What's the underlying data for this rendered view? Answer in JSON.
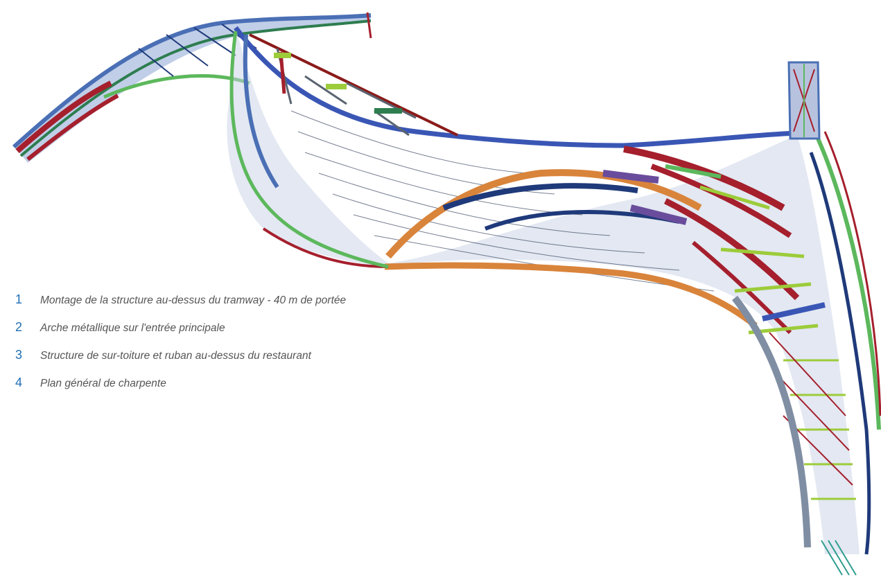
{
  "captions": [
    {
      "number": "1",
      "text": "Montage de la structure au-dessus du tramway - 40 m de portée"
    },
    {
      "number": "2",
      "text": "Arche métallique sur l'entrée principale"
    },
    {
      "number": "3",
      "text": "Structure de sur-toiture et ruban au-dessus du restaurant"
    },
    {
      "number": "4",
      "text": "Plan général de charpente"
    }
  ],
  "colors": {
    "caption_number": "#1f6fb6",
    "caption_text": "#555555",
    "steel_blue": "#4a6fb5",
    "steel_grey": "#7f8ea3",
    "steel_red": "#a51f2d",
    "steel_green": "#5cb85c",
    "steel_orange": "#d9843b",
    "steel_navy": "#1f3a7a",
    "steel_lime": "#9ccc3a",
    "steel_purple": "#6a4c9c"
  }
}
